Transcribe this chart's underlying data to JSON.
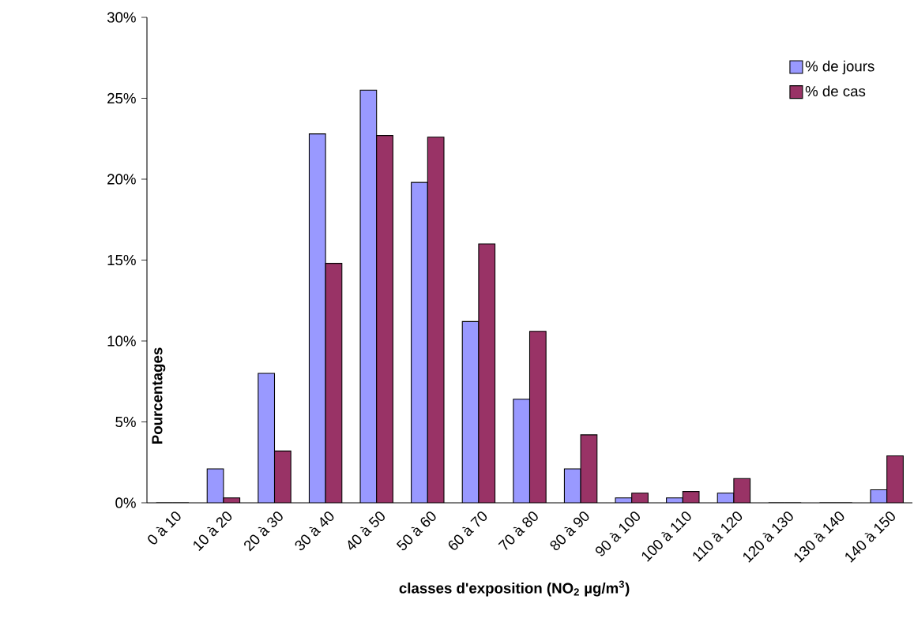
{
  "chart_data": {
    "type": "bar",
    "xlabel": "classes d'exposition (NO$_{2}$ µg/m$^{3}$)",
    "ylabel": "Pourcentages",
    "categories": [
      "0 à 10",
      "10 à 20",
      "20 à 30",
      "30 à 40",
      "40 à 50",
      "50 à 60",
      "60 à 70",
      "70 à 80",
      "80 à 90",
      "90 à 100",
      "100 à 110",
      "110 à 120",
      "120 à 130",
      "130 à 140",
      "140 à 150"
    ],
    "series": [
      {
        "name": "% de jours",
        "color": "#9999ff",
        "values": [
          0,
          2.1,
          8.0,
          22.8,
          25.5,
          19.8,
          11.2,
          6.4,
          2.1,
          0.3,
          0.3,
          0.6,
          0,
          0,
          0.8
        ]
      },
      {
        "name": "% de cas",
        "color": "#993366",
        "values": [
          0,
          0.3,
          3.2,
          14.8,
          22.7,
          22.6,
          16.0,
          10.6,
          4.2,
          0.6,
          0.7,
          1.5,
          0,
          0,
          2.9
        ]
      }
    ],
    "ylim": [
      0,
      30
    ],
    "yticks": [
      {
        "value": 0,
        "label": "0%"
      },
      {
        "value": 5,
        "label": "5%"
      },
      {
        "value": 10,
        "label": "10%"
      },
      {
        "value": 15,
        "label": "15%"
      },
      {
        "value": 20,
        "label": "20%"
      },
      {
        "value": 25,
        "label": "25%"
      },
      {
        "value": 30,
        "label": "30%"
      }
    ],
    "legend": "top right"
  }
}
